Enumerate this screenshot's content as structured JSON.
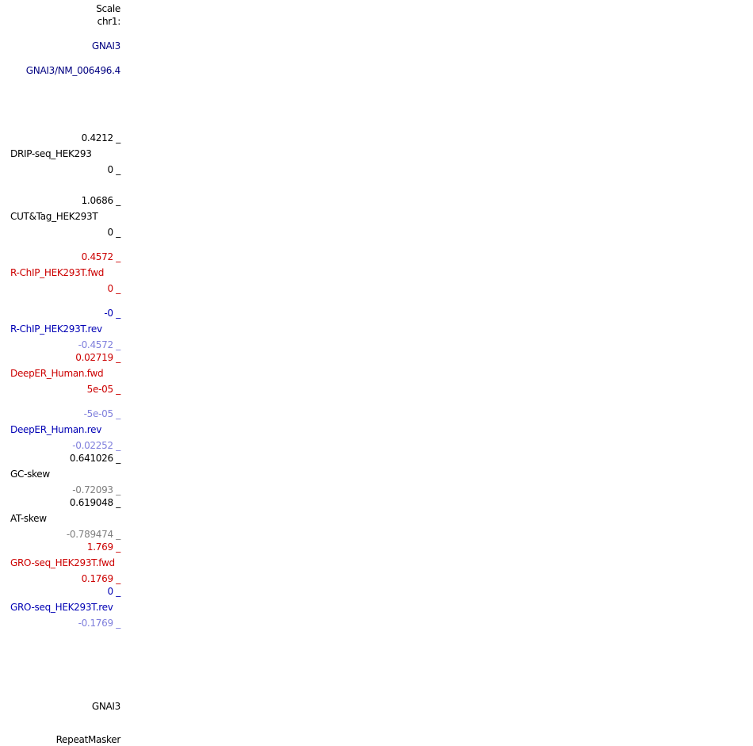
{
  "left_labels": {
    "scale": "Scale",
    "chrom": "chr1:",
    "gene_track": "GNAI3",
    "transcript": "GNAI3/NM_006496.4",
    "drip": {
      "max": "0.4212 _",
      "name": "DRIP-seq_HEK293",
      "min": "0 _"
    },
    "cuttag": {
      "max": "1.0686 _",
      "name": "CUT&Tag_HEK293T",
      "min": "0 _"
    },
    "rchip_fwd": {
      "max": "0.4572 _",
      "name": "R-ChIP_HEK293T.fwd",
      "min": "0 _"
    },
    "rchip_rev": {
      "max": "-0 _",
      "name": "R-ChIP_HEK293T.rev",
      "min": "-0.4572 _"
    },
    "deeper_fwd": {
      "max": "0.02719 _",
      "name": "DeepER_Human.fwd",
      "min": "5e-05 _"
    },
    "deeper_rev": {
      "max": "-5e-05 _",
      "name": "DeepER_Human.rev",
      "min": "-0.02252 _"
    },
    "gc_skew": {
      "max": "0.641026 _",
      "name": "GC-skew",
      "min": "-0.72093 _"
    },
    "at_skew": {
      "max": "0.619048 _",
      "name": "AT-skew",
      "min": "-0.789474 _"
    },
    "gro_fwd": {
      "max": "1.769 _",
      "name": "GRO-seq_HEK293T.fwd",
      "min": "0.1769 _"
    },
    "gro_rev": {
      "max": "0 _",
      "name": "GRO-seq_HEK293T.rev",
      "min": "-0.1769 _"
    },
    "gene_bottom": "GNAI3",
    "repeatmasker": "RepeatMasker"
  },
  "colors": {
    "black": "#000000",
    "navy": "#000080",
    "red": "#cc0000",
    "blue": "#0000b4",
    "light_blue": "#7f7fdc",
    "gray": "#7f7f7f"
  }
}
